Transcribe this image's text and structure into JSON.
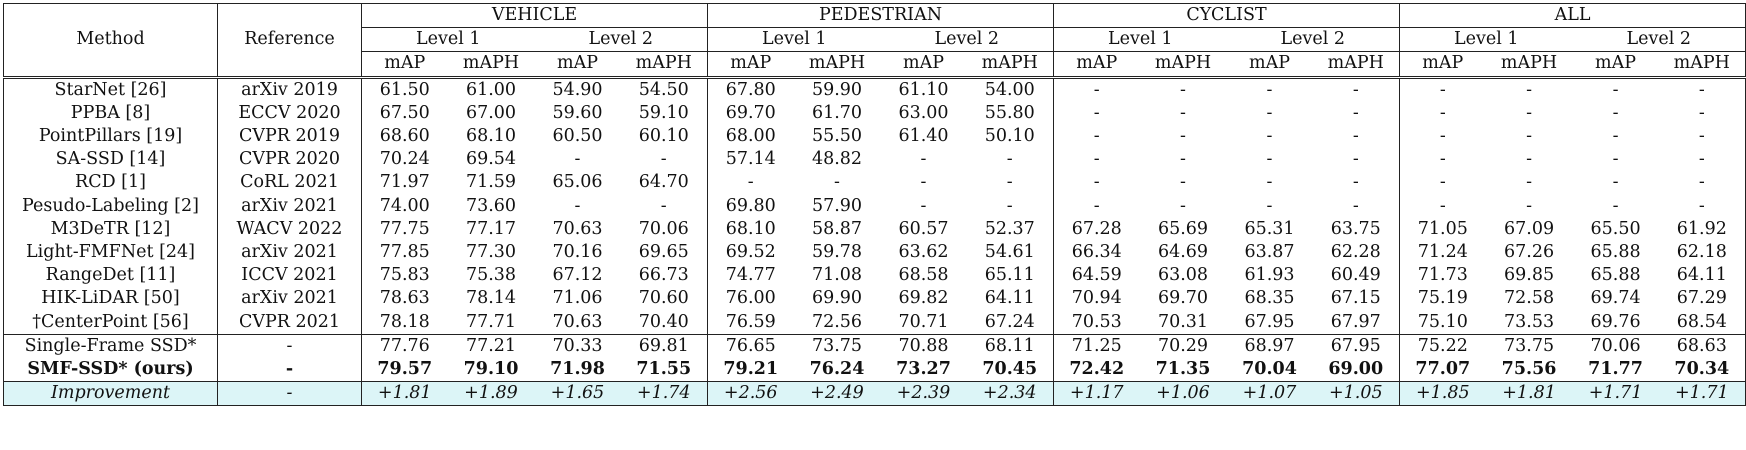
{
  "headers": {
    "method": "Method",
    "reference": "Reference",
    "groups": [
      "VEHICLE",
      "PEDESTRIAN",
      "CYCLIST",
      "ALL"
    ],
    "levels": [
      "Level 1",
      "Level 2"
    ],
    "metrics": [
      "mAP",
      "mAPH"
    ]
  },
  "rows": [
    {
      "method": "StarNet [26]",
      "reference": "arXiv 2019",
      "values": [
        "61.50",
        "61.00",
        "54.90",
        "54.50",
        "67.80",
        "59.90",
        "61.10",
        "54.00",
        "-",
        "-",
        "-",
        "-",
        "-",
        "-",
        "-",
        "-"
      ]
    },
    {
      "method": "PPBA [8]",
      "reference": "ECCV 2020",
      "values": [
        "67.50",
        "67.00",
        "59.60",
        "59.10",
        "69.70",
        "61.70",
        "63.00",
        "55.80",
        "-",
        "-",
        "-",
        "-",
        "-",
        "-",
        "-",
        "-"
      ]
    },
    {
      "method": "PointPillars [19]",
      "reference": "CVPR 2019",
      "values": [
        "68.60",
        "68.10",
        "60.50",
        "60.10",
        "68.00",
        "55.50",
        "61.40",
        "50.10",
        "-",
        "-",
        "-",
        "-",
        "-",
        "-",
        "-",
        "-"
      ]
    },
    {
      "method": "SA-SSD [14]",
      "reference": "CVPR 2020",
      "values": [
        "70.24",
        "69.54",
        "-",
        "-",
        "57.14",
        "48.82",
        "-",
        "-",
        "-",
        "-",
        "-",
        "-",
        "-",
        "-",
        "-",
        "-"
      ]
    },
    {
      "method": "RCD [1]",
      "reference": "CoRL 2021",
      "values": [
        "71.97",
        "71.59",
        "65.06",
        "64.70",
        "-",
        "-",
        "-",
        "-",
        "-",
        "-",
        "-",
        "-",
        "-",
        "-",
        "-",
        "-"
      ]
    },
    {
      "method": "Pesudo-Labeling [2]",
      "reference": "arXiv 2021",
      "values": [
        "74.00",
        "73.60",
        "-",
        "-",
        "69.80",
        "57.90",
        "-",
        "-",
        "-",
        "-",
        "-",
        "-",
        "-",
        "-",
        "-",
        "-"
      ]
    },
    {
      "method": "M3DeTR [12]",
      "reference": "WACV 2022",
      "values": [
        "77.75",
        "77.17",
        "70.63",
        "70.06",
        "68.10",
        "58.87",
        "60.57",
        "52.37",
        "67.28",
        "65.69",
        "65.31",
        "63.75",
        "71.05",
        "67.09",
        "65.50",
        "61.92"
      ]
    },
    {
      "method": "Light-FMFNet [24]",
      "reference": "arXiv 2021",
      "values": [
        "77.85",
        "77.30",
        "70.16",
        "69.65",
        "69.52",
        "59.78",
        "63.62",
        "54.61",
        "66.34",
        "64.69",
        "63.87",
        "62.28",
        "71.24",
        "67.26",
        "65.88",
        "62.18"
      ]
    },
    {
      "method": "RangeDet [11]",
      "reference": "ICCV 2021",
      "values": [
        "75.83",
        "75.38",
        "67.12",
        "66.73",
        "74.77",
        "71.08",
        "68.58",
        "65.11",
        "64.59",
        "63.08",
        "61.93",
        "60.49",
        "71.73",
        "69.85",
        "65.88",
        "64.11"
      ]
    },
    {
      "method": "HIK-LiDAR [50]",
      "reference": "arXiv 2021",
      "values": [
        "78.63",
        "78.14",
        "71.06",
        "70.60",
        "76.00",
        "69.90",
        "69.82",
        "64.11",
        "70.94",
        "69.70",
        "68.35",
        "67.15",
        "75.19",
        "72.58",
        "69.74",
        "67.29"
      ]
    },
    {
      "method": "†CenterPoint [56]",
      "reference": "CVPR 2021",
      "values": [
        "78.18",
        "77.71",
        "70.63",
        "70.40",
        "76.59",
        "72.56",
        "70.71",
        "67.24",
        "70.53",
        "70.31",
        "67.95",
        "67.97",
        "75.10",
        "73.53",
        "69.76",
        "68.54"
      ]
    }
  ],
  "ours": [
    {
      "method": "Single-Frame SSD*",
      "reference": "-",
      "values": [
        "77.76",
        "77.21",
        "70.33",
        "69.81",
        "76.65",
        "73.75",
        "70.88",
        "68.11",
        "71.25",
        "70.29",
        "68.97",
        "67.95",
        "75.22",
        "73.75",
        "70.06",
        "68.63"
      ]
    },
    {
      "method": "SMF-SSD* (ours)",
      "reference": "-",
      "values": [
        "79.57",
        "79.10",
        "71.98",
        "71.55",
        "79.21",
        "76.24",
        "73.27",
        "70.45",
        "72.42",
        "71.35",
        "70.04",
        "69.00",
        "77.07",
        "75.56",
        "71.77",
        "70.34"
      ]
    }
  ],
  "improvement": {
    "method": "Improvement",
    "reference": "-",
    "values": [
      "+1.81",
      "+1.89",
      "+1.65",
      "+1.74",
      "+2.56",
      "+2.49",
      "+2.39",
      "+2.34",
      "+1.17",
      "+1.06",
      "+1.07",
      "+1.05",
      "+1.85",
      "+1.81",
      "+1.71",
      "+1.71"
    ]
  },
  "colors": {
    "improvement_row_bg": "#dcf5f7",
    "rule": "#222222"
  }
}
